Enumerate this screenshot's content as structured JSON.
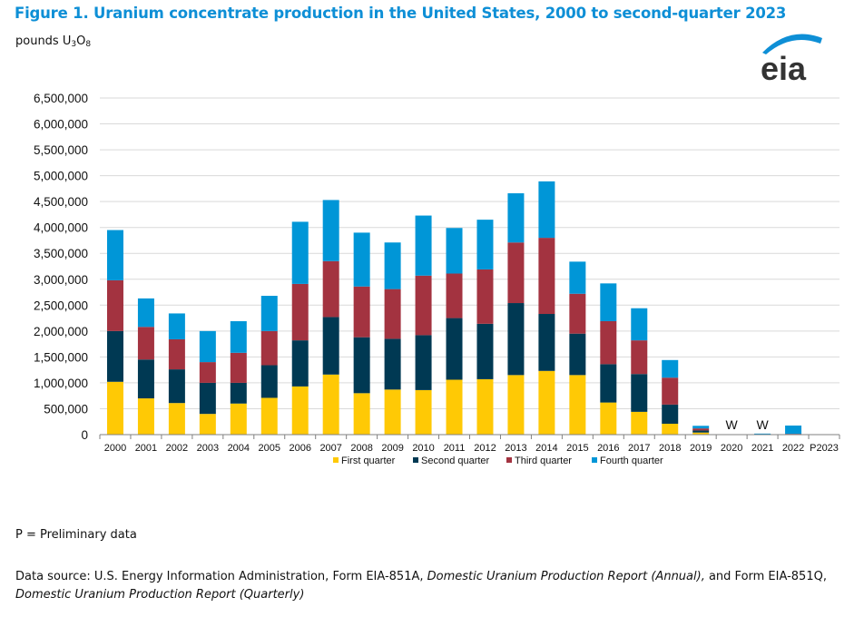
{
  "header": {
    "title": "Figure 1. Uranium concentrate production in the United States, 2000 to second-quarter 2023",
    "units_prefix": "pounds U",
    "units_sub1": "3",
    "units_mid": "O",
    "units_sub2": "8",
    "logo_text": "eia"
  },
  "footer": {
    "footnote": "P = Preliminary data",
    "source_part1": "Data source: U.S. Energy Information Administration, Form EIA-851A, ",
    "source_italic1": "Domestic Uranium Production Report (Annual),",
    "source_part2": " and Form EIA-851Q, ",
    "source_italic2": "Domestic Uranium Production Report (Quarterly)"
  },
  "colors": {
    "title": "#0e8fd6",
    "first_quarter": "#ffc905",
    "second_quarter": "#003953",
    "third_quarter": "#a33340",
    "fourth_quarter": "#0096d7",
    "grid": "#d9d9d9",
    "axis": "#808080"
  },
  "chart_data": {
    "type": "bar",
    "stacked": true,
    "title": "Uranium concentrate production in the United States, 2000 to second-quarter 2023",
    "xlabel": "",
    "ylabel": "pounds U3O8",
    "ylim": [
      0,
      6500000
    ],
    "yticks": [
      0,
      500000,
      1000000,
      1500000,
      2000000,
      2500000,
      3000000,
      3500000,
      4000000,
      4500000,
      5000000,
      5500000,
      6000000,
      6500000
    ],
    "ytick_labels": [
      "0",
      "500,000",
      "1,000,000",
      "1,500,000",
      "2,000,000",
      "2,500,000",
      "3,000,000",
      "3,500,000",
      "4,000,000",
      "4,500,000",
      "5,000,000",
      "5,500,000",
      "6,000,000",
      "6,500,000"
    ],
    "grid": true,
    "legend_position": "bottom",
    "categories": [
      "2000",
      "2001",
      "2002",
      "2003",
      "2004",
      "2005",
      "2006",
      "2007",
      "2008",
      "2009",
      "2010",
      "2011",
      "2012",
      "2013",
      "2014",
      "2015",
      "2016",
      "2017",
      "2018",
      "2019",
      "2020",
      "2021",
      "2022",
      "P2023"
    ],
    "series": [
      {
        "name": "First quarter",
        "key": "first_quarter",
        "values": [
          1020000,
          700000,
          610000,
          400000,
          600000,
          710000,
          930000,
          1160000,
          800000,
          870000,
          860000,
          1060000,
          1070000,
          1150000,
          1230000,
          1150000,
          620000,
          440000,
          210000,
          40000,
          0,
          0,
          5000,
          0
        ]
      },
      {
        "name": "Second quarter",
        "key": "second_quarter",
        "values": [
          980000,
          750000,
          650000,
          600000,
          400000,
          630000,
          890000,
          1110000,
          1080000,
          980000,
          1060000,
          1190000,
          1070000,
          1390000,
          1100000,
          800000,
          740000,
          730000,
          370000,
          40000,
          0,
          12000,
          0,
          0
        ]
      },
      {
        "name": "Third quarter",
        "key": "third_quarter",
        "values": [
          980000,
          630000,
          580000,
          400000,
          580000,
          660000,
          1090000,
          1080000,
          980000,
          960000,
          1150000,
          860000,
          1050000,
          1170000,
          1470000,
          770000,
          830000,
          650000,
          520000,
          40000,
          0,
          0,
          10000,
          0
        ]
      },
      {
        "name": "Fourth quarter",
        "key": "fourth_quarter",
        "values": [
          970000,
          550000,
          500000,
          600000,
          610000,
          680000,
          1200000,
          1180000,
          1040000,
          900000,
          1160000,
          880000,
          960000,
          950000,
          1090000,
          620000,
          730000,
          620000,
          340000,
          50000,
          0,
          8000,
          160000,
          0
        ]
      }
    ],
    "annotations": [
      {
        "category": "2020",
        "text": "W"
      },
      {
        "category": "2021",
        "text": "W"
      }
    ]
  }
}
